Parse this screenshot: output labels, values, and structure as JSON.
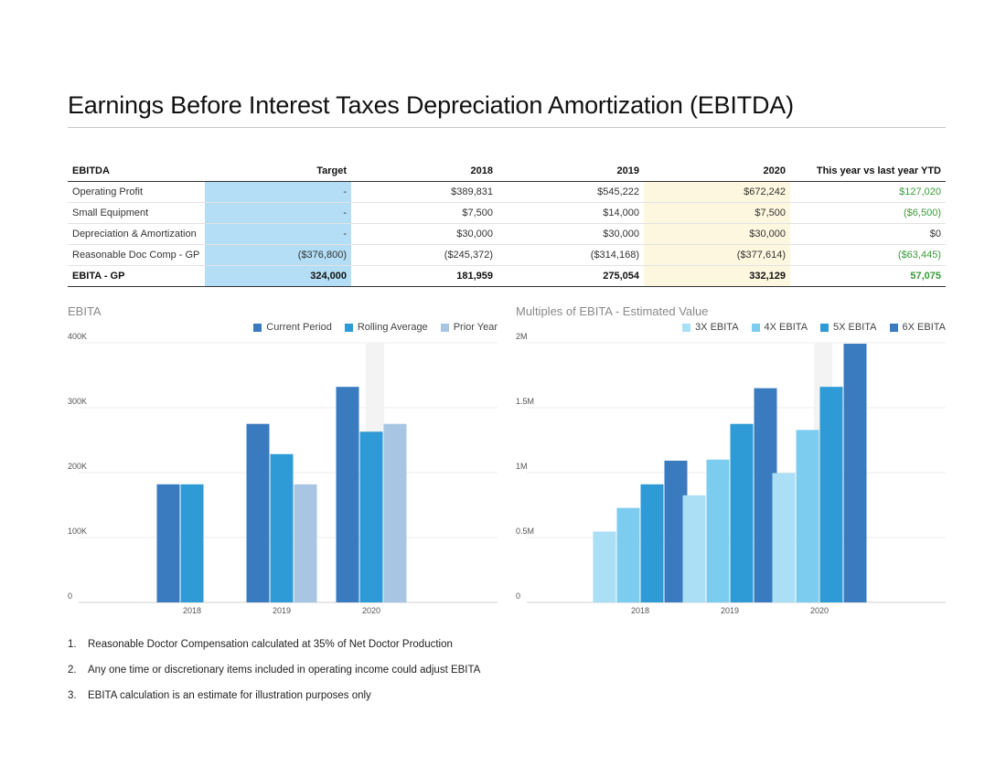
{
  "page": {
    "title": "Earnings Before Interest Taxes Depreciation Amortization (EBITDA)"
  },
  "table": {
    "headers": [
      "EBITDA",
      "Target",
      "2018",
      "2019",
      "2020",
      "This year vs last year YTD"
    ],
    "rows": [
      {
        "label": "Operating Profit",
        "target": "-",
        "y2018": "$389,831",
        "y2019": "$545,222",
        "y2020": "$672,242",
        "yoy": "$127,020",
        "yoy_positive": true
      },
      {
        "label": "Small Equipment",
        "target": "-",
        "y2018": "$7,500",
        "y2019": "$14,000",
        "y2020": "$7,500",
        "yoy": "($6,500)",
        "yoy_positive": true
      },
      {
        "label": "Depreciation & Amortization",
        "target": "-",
        "y2018": "$30,000",
        "y2019": "$30,000",
        "y2020": "$30,000",
        "yoy": "$0",
        "yoy_positive": false
      },
      {
        "label": "Reasonable Doc Comp - GP",
        "target": "($376,800)",
        "y2018": "($245,372)",
        "y2019": "($314,168)",
        "y2020": "($377,614)",
        "yoy": "($63,445)",
        "yoy_positive": true
      },
      {
        "label": "EBITA - GP",
        "target": "324,000",
        "y2018": "181,959",
        "y2019": "275,054",
        "y2020": "332,129",
        "yoy": "57,075",
        "yoy_positive": true,
        "total": true
      }
    ]
  },
  "chart_data": [
    {
      "type": "bar",
      "title": "EBITA",
      "categories": [
        "2018",
        "2019",
        "2020"
      ],
      "series": [
        {
          "name": "Current Period",
          "color": "#3a7bbf",
          "values": [
            181959,
            275054,
            332129
          ]
        },
        {
          "name": "Rolling Average",
          "color": "#2e9bd6",
          "values": [
            181959,
            228507,
            263047
          ]
        },
        {
          "name": "Prior Year",
          "color": "#a8c6e3",
          "values": [
            null,
            181959,
            275054
          ]
        }
      ],
      "ylim": [
        0,
        400000
      ],
      "yticks": [
        0,
        100000,
        200000,
        300000,
        400000
      ],
      "ytick_labels": [
        "0",
        "100K",
        "200K",
        "300K",
        "400K"
      ],
      "legend": "top-right",
      "grid": true
    },
    {
      "type": "bar",
      "title": "Multiples of EBITA - Estimated Value",
      "categories": [
        "2018",
        "2019",
        "2020"
      ],
      "series": [
        {
          "name": "3X EBITA",
          "color": "#aadff5",
          "values": [
            545877,
            825162,
            996387
          ]
        },
        {
          "name": "4X EBITA",
          "color": "#7cccf0",
          "values": [
            727836,
            1100216,
            1328516
          ]
        },
        {
          "name": "5X EBITA",
          "color": "#2e9bd6",
          "values": [
            909795,
            1375270,
            1660645
          ]
        },
        {
          "name": "6X EBITA",
          "color": "#3a7bbf",
          "values": [
            1091754,
            1650324,
            1992774
          ]
        }
      ],
      "ylim": [
        0,
        2000000
      ],
      "yticks": [
        0,
        500000,
        1000000,
        1500000,
        2000000
      ],
      "ytick_labels": [
        "0",
        "0.5M",
        "1M",
        "1.5M",
        "2M"
      ],
      "legend": "top-right",
      "grid": true
    }
  ],
  "notes": [
    {
      "num": "1.",
      "text": "Reasonable Doctor Compensation calculated at 35% of Net Doctor Production"
    },
    {
      "num": "2.",
      "text": "Any one time or discretionary items included in operating income could adjust EBITA"
    },
    {
      "num": "3.",
      "text": "EBITA calculation is an estimate for illustration purposes only"
    }
  ]
}
